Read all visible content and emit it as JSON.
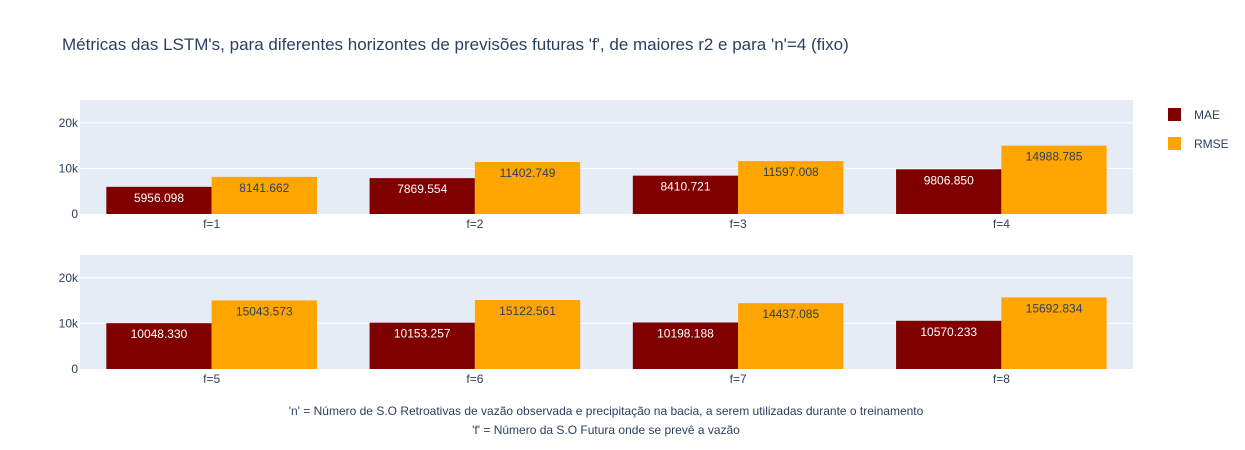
{
  "chart_data": {
    "type": "bar",
    "title": "Métricas das LSTM's, para diferentes horizontes de previsões futuras 'f', de maiores r2 e para 'n'=4 (fixo)",
    "ylim": [
      0,
      25000
    ],
    "yticks": [
      {
        "value": 0,
        "label": "0"
      },
      {
        "value": 10000,
        "label": "10k"
      },
      {
        "value": 20000,
        "label": "20k"
      }
    ],
    "grid": true,
    "legend_placement": "top-right",
    "series_meta": [
      {
        "name": "MAE",
        "color": "#800000",
        "label_color": "#ffffff"
      },
      {
        "name": "RMSE",
        "color": "#ffa500",
        "label_color": "#2a3f5f"
      }
    ],
    "panels": [
      {
        "categories": [
          "f=1",
          "f=2",
          "f=3",
          "f=4"
        ],
        "series": [
          {
            "name": "MAE",
            "values": [
              5956.098,
              7869.554,
              8410.721,
              9806.85
            ],
            "labels": [
              "5956.098",
              "7869.554",
              "8410.721",
              "9806.850"
            ]
          },
          {
            "name": "RMSE",
            "values": [
              8141.662,
              11402.749,
              11597.008,
              14988.785
            ],
            "labels": [
              "8141.662",
              "11402.749",
              "11597.008",
              "14988.785"
            ]
          }
        ]
      },
      {
        "categories": [
          "f=5",
          "f=6",
          "f=7",
          "f=8"
        ],
        "series": [
          {
            "name": "MAE",
            "values": [
              10048.33,
              10153.257,
              10198.188,
              10570.233
            ],
            "labels": [
              "10048.330",
              "10153.257",
              "10198.188",
              "10570.233"
            ]
          },
          {
            "name": "RMSE",
            "values": [
              15043.573,
              15122.561,
              14437.085,
              15692.834
            ],
            "labels": [
              "15043.573",
              "15122.561",
              "14437.085",
              "15692.834"
            ]
          }
        ]
      }
    ],
    "annotations": [
      "'n' = Número de S.O Retroativas de vazão observada e precipitação na bacia, a serem utilizadas durante o treinamento",
      "'f' = Número da S.O Futura onde se prevê a vazão"
    ]
  }
}
